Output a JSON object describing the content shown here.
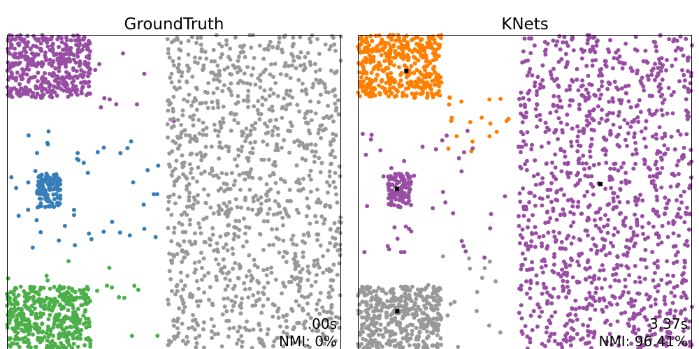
{
  "chart_data": [
    {
      "type": "scatter",
      "title": "GroundTruth",
      "time_label": ".00s",
      "nmi_label": "NMI: 0%",
      "xlim": [
        0,
        1
      ],
      "ylim": [
        0,
        1
      ],
      "grid": false,
      "legend": "none",
      "series": [
        {
          "color": "#984ea3",
          "distribution": "uniform",
          "x_range": [
            0.0,
            0.25
          ],
          "y_range": [
            0.8,
            1.0
          ],
          "count": 420
        },
        {
          "color": "#984ea3",
          "distribution": "uniform",
          "x_range": [
            0.25,
            0.5
          ],
          "y_range": [
            0.72,
            0.95
          ],
          "count": 10
        },
        {
          "color": "#377eb8",
          "distribution": "uniform",
          "x_range": [
            0.09,
            0.16
          ],
          "y_range": [
            0.45,
            0.56
          ],
          "count": 110
        },
        {
          "color": "#377eb8",
          "distribution": "uniform",
          "x_range": [
            0.0,
            0.46
          ],
          "y_range": [
            0.3,
            0.7
          ],
          "count": 45
        },
        {
          "color": "#4daf4a",
          "distribution": "uniform",
          "x_range": [
            0.0,
            0.25
          ],
          "y_range": [
            0.0,
            0.2
          ],
          "count": 420
        },
        {
          "color": "#4daf4a",
          "distribution": "uniform",
          "x_range": [
            0.0,
            0.46
          ],
          "y_range": [
            0.0,
            0.3
          ],
          "count": 30
        },
        {
          "color": "#999999",
          "distribution": "uniform",
          "x_range": [
            0.48,
            1.0
          ],
          "y_range": [
            0.0,
            1.0
          ],
          "count": 1150
        }
      ]
    },
    {
      "type": "scatter",
      "title": "KNets",
      "time_label": "3.37s",
      "nmi_label": "NMI: 96.41%",
      "xlim": [
        0,
        1
      ],
      "ylim": [
        0,
        1
      ],
      "grid": false,
      "legend": "none",
      "series": [
        {
          "color": "#ff7f00",
          "distribution": "uniform",
          "x_range": [
            0.0,
            0.25
          ],
          "y_range": [
            0.8,
            1.0
          ],
          "count": 420
        },
        {
          "color": "#ff7f00",
          "distribution": "uniform",
          "x_range": [
            0.2,
            0.46
          ],
          "y_range": [
            0.62,
            0.85
          ],
          "count": 22
        },
        {
          "color": "#984ea3",
          "distribution": "uniform",
          "x_range": [
            0.09,
            0.16
          ],
          "y_range": [
            0.45,
            0.56
          ],
          "count": 110
        },
        {
          "color": "#984ea3",
          "distribution": "uniform",
          "x_range": [
            0.0,
            0.46
          ],
          "y_range": [
            0.28,
            0.7
          ],
          "count": 40
        },
        {
          "color": "#999999",
          "distribution": "uniform",
          "x_range": [
            0.0,
            0.25
          ],
          "y_range": [
            0.0,
            0.2
          ],
          "count": 420
        },
        {
          "color": "#999999",
          "distribution": "uniform",
          "x_range": [
            0.0,
            0.46
          ],
          "y_range": [
            0.0,
            0.3
          ],
          "count": 25
        },
        {
          "color": "#984ea3",
          "distribution": "uniform",
          "x_range": [
            0.48,
            1.0
          ],
          "y_range": [
            0.0,
            1.0
          ],
          "count": 1150
        }
      ],
      "centroids": [
        {
          "x": 0.145,
          "y": 0.885
        },
        {
          "x": 0.117,
          "y": 0.51
        },
        {
          "x": 0.726,
          "y": 0.525
        },
        {
          "x": 0.118,
          "y": 0.12
        }
      ]
    }
  ]
}
